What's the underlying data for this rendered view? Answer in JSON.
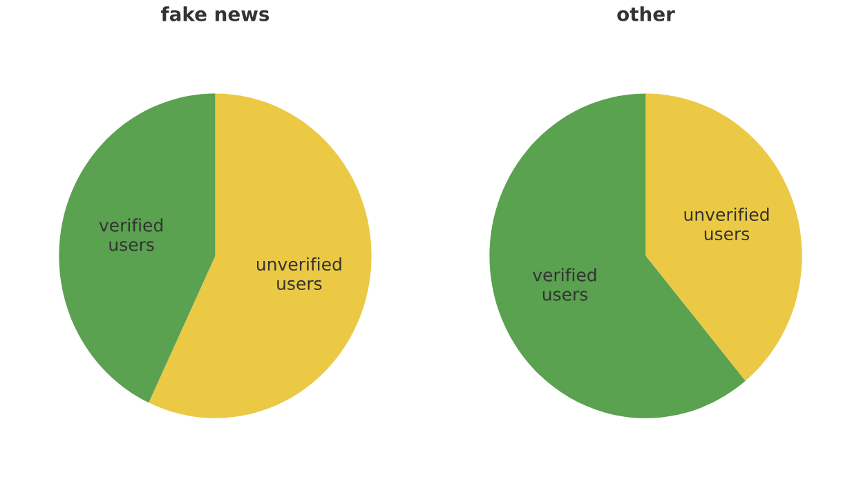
{
  "chart_data": [
    {
      "type": "pie",
      "title": "fake news",
      "categories": [
        "unverified users",
        "verified users"
      ],
      "values": [
        57,
        43
      ],
      "colors": [
        "#ebc944",
        "#5aa150"
      ]
    },
    {
      "type": "pie",
      "title": "other",
      "categories": [
        "unverified users",
        "verified users"
      ],
      "values": [
        39,
        61
      ],
      "colors": [
        "#ebc944",
        "#5aa150"
      ]
    }
  ]
}
